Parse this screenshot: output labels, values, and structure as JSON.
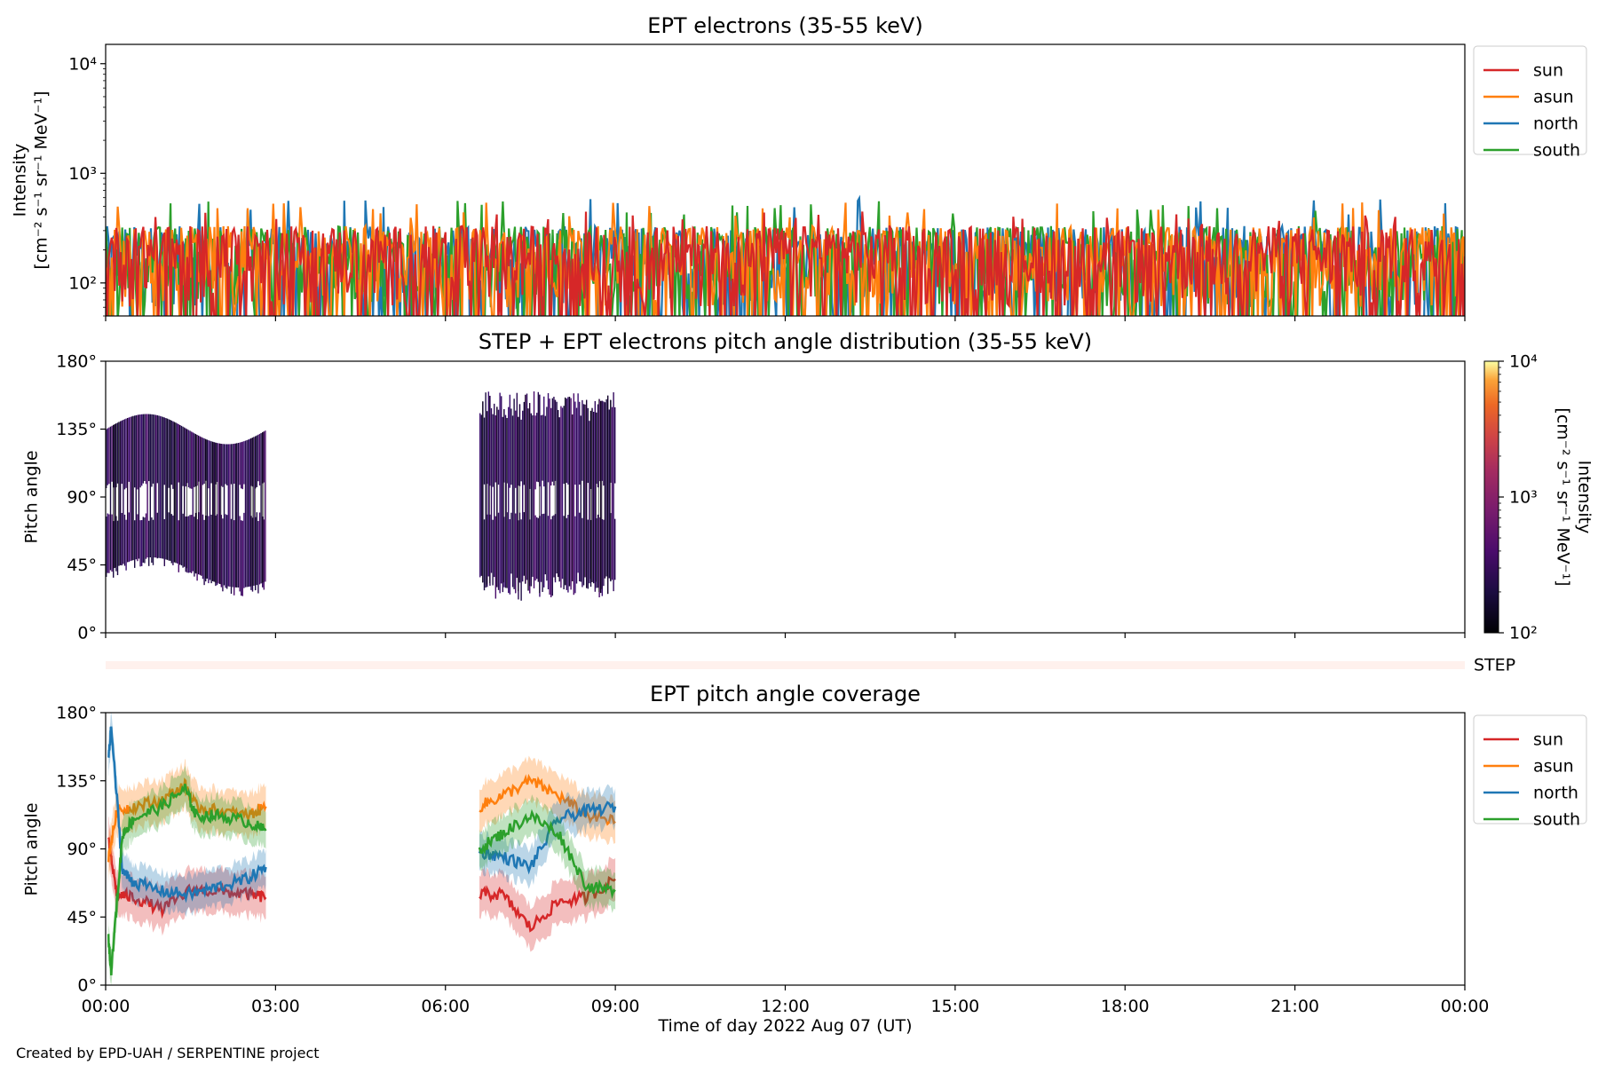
{
  "figure": {
    "credit": "Created by EPD-UAH / SERPENTINE project",
    "xlabel": "Time of day 2022 Aug 07 (UT)",
    "x_ticks": [
      "00:00",
      "03:00",
      "06:00",
      "09:00",
      "12:00",
      "15:00",
      "18:00",
      "21:00",
      "00:00"
    ]
  },
  "colors": {
    "sun": "#d62728",
    "asun": "#ff7f0e",
    "north": "#1f77b4",
    "south": "#2ca02c"
  },
  "legend": [
    "sun",
    "asun",
    "north",
    "south"
  ],
  "chart_data": [
    {
      "type": "line",
      "title": "EPT electrons (35-55 keV)",
      "ylabel_line1": "Intensity",
      "ylabel_line2": "[cm⁻² s⁻¹ sr⁻¹ MeV⁻¹]",
      "yscale": "log",
      "ylim": [
        50,
        15000
      ],
      "y_ticks": [
        {
          "value": 100,
          "label": "10²"
        },
        {
          "value": 1000,
          "label": "10³"
        },
        {
          "value": 10000,
          "label": "10⁴"
        }
      ],
      "x_range_hours": [
        0,
        24
      ],
      "series": [
        {
          "name": "sun",
          "typical": 150,
          "max": 450
        },
        {
          "name": "asun",
          "typical": 150,
          "max": 550
        },
        {
          "name": "north",
          "typical": 150,
          "max": 600
        },
        {
          "name": "south",
          "typical": 150,
          "max": 600
        }
      ],
      "legend_position": "outside-right"
    },
    {
      "type": "heatmap",
      "title": "STEP + EPT electrons pitch angle distribution (35-55 keV)",
      "ylabel": "Pitch angle",
      "ylim": [
        0,
        180
      ],
      "y_ticks": [
        "0°",
        "45°",
        "90°",
        "135°",
        "180°"
      ],
      "colorbar": {
        "label_line1": "Intensity",
        "label_line2": "[cm⁻² s⁻¹ sr⁻¹ MeV⁻¹]",
        "scale": "log",
        "range": [
          100,
          10000
        ],
        "ticks": [
          {
            "value": 100,
            "label": "10²"
          },
          {
            "value": 1000,
            "label": "10³"
          },
          {
            "value": 10000,
            "label": "10⁴"
          }
        ],
        "colormap": "inferno"
      },
      "segments": [
        {
          "start": 0.0,
          "end": 2.83
        },
        {
          "start": 6.6,
          "end": 9.0
        }
      ]
    },
    {
      "type": "bar",
      "label": "STEP",
      "note": "empty strip"
    },
    {
      "type": "line",
      "title": "EPT pitch angle coverage",
      "ylabel": "Pitch angle",
      "ylim": [
        0,
        180
      ],
      "y_ticks": [
        "0°",
        "45°",
        "90°",
        "135°",
        "180°"
      ],
      "segments": [
        {
          "start": 0.0,
          "end": 2.83
        },
        {
          "start": 6.6,
          "end": 9.0
        }
      ],
      "series": [
        {
          "name": "sun",
          "x": [
            0.05,
            0.2,
            0.5,
            1.0,
            1.5,
            2.0,
            2.5,
            2.83,
            6.6,
            7.0,
            7.5,
            8.0,
            8.5,
            9.0
          ],
          "y": [
            95,
            60,
            58,
            50,
            63,
            62,
            60,
            58,
            60,
            60,
            38,
            55,
            58,
            70
          ],
          "band": 14
        },
        {
          "name": "asun",
          "x": [
            0.05,
            0.2,
            0.5,
            1.0,
            1.4,
            1.6,
            2.0,
            2.5,
            2.83,
            6.6,
            7.0,
            7.5,
            8.0,
            8.5,
            9.0
          ],
          "y": [
            85,
            115,
            118,
            122,
            132,
            118,
            115,
            112,
            118,
            118,
            125,
            135,
            125,
            112,
            108
          ],
          "band": 14
        },
        {
          "name": "north",
          "x": [
            0.05,
            0.1,
            0.3,
            0.5,
            1.0,
            1.5,
            2.0,
            2.5,
            2.83,
            6.6,
            7.0,
            7.5,
            8.0,
            8.5,
            9.0
          ],
          "y": [
            150,
            170,
            75,
            68,
            62,
            60,
            65,
            70,
            78,
            88,
            85,
            78,
            110,
            115,
            118
          ],
          "band": 12
        },
        {
          "name": "south",
          "x": [
            0.05,
            0.1,
            0.3,
            0.5,
            1.0,
            1.4,
            1.6,
            2.0,
            2.5,
            2.83,
            6.6,
            7.0,
            7.5,
            8.0,
            8.5,
            9.0
          ],
          "y": [
            30,
            10,
            100,
            110,
            118,
            130,
            112,
            112,
            108,
            102,
            90,
            100,
            112,
            100,
            65,
            62
          ],
          "band": 12
        }
      ],
      "legend_position": "outside-right"
    }
  ]
}
